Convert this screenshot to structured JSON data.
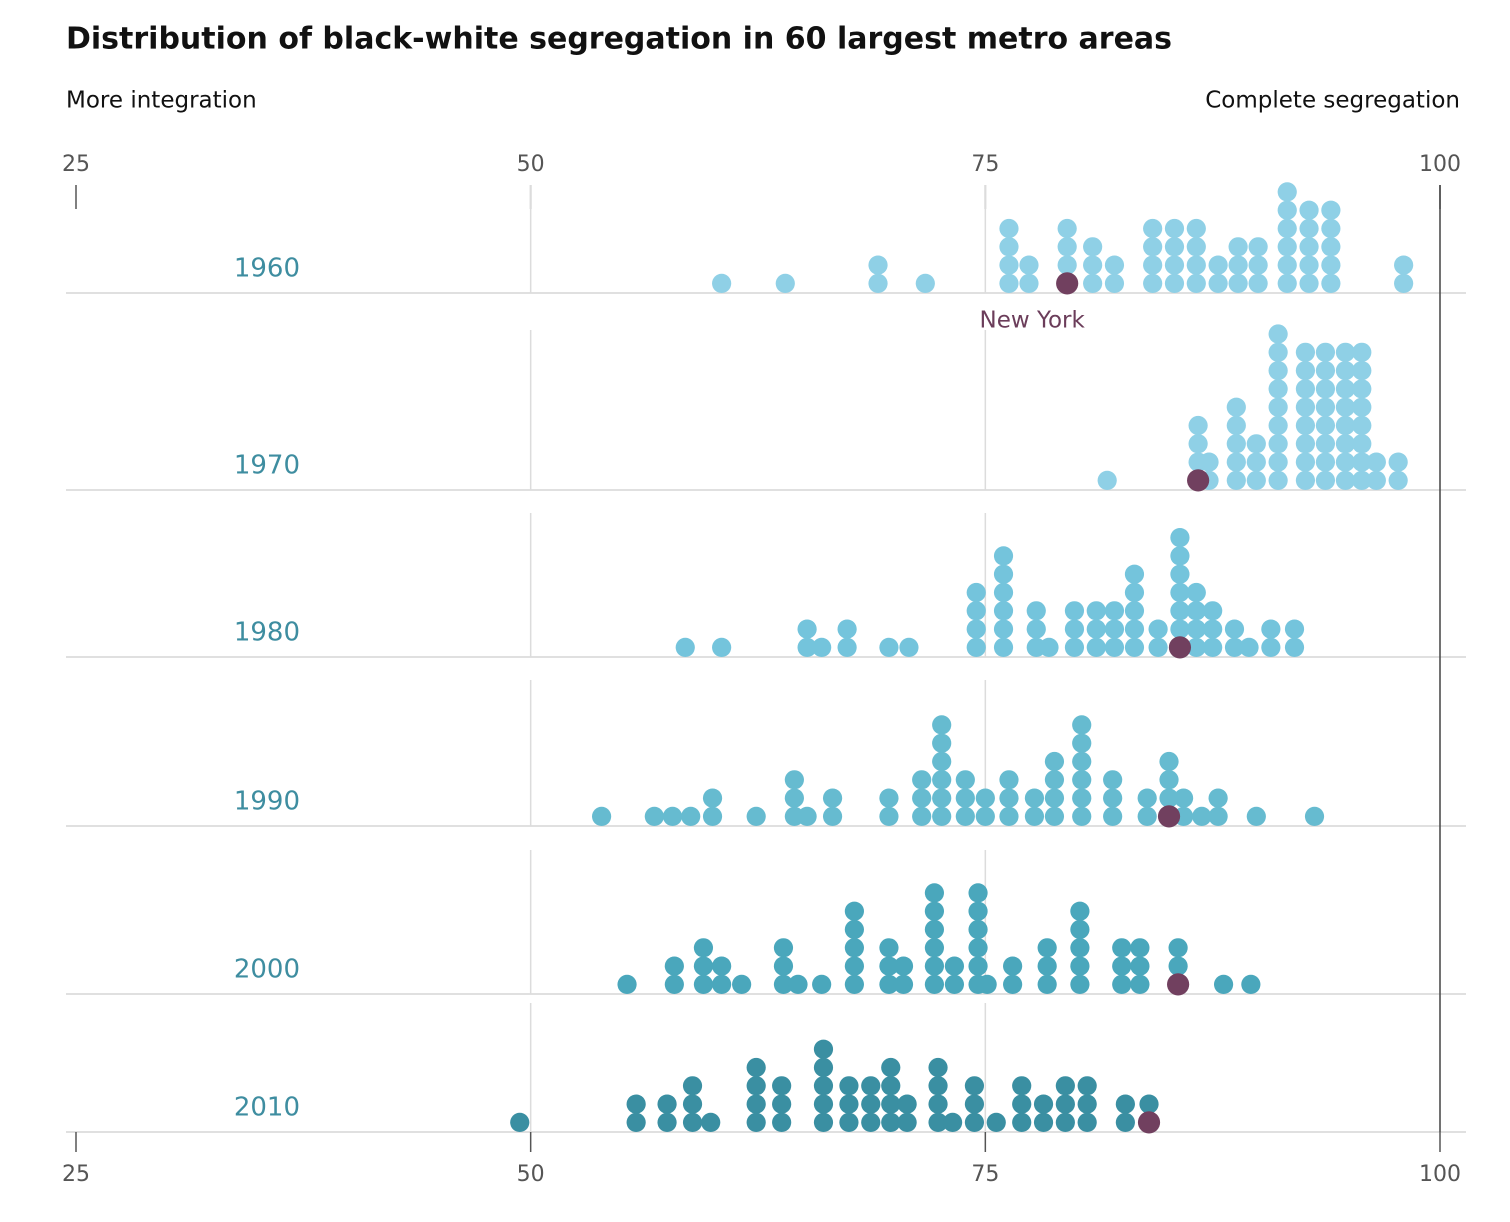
{
  "chart_data": {
    "type": "dot-stack",
    "title": "Distribution of black-white segregation in 60 largest metro areas",
    "left_label": "More integration",
    "right_label": "Complete segregation",
    "highlight_label": "New York",
    "highlight_color": "#71405f",
    "xlim": [
      25,
      100
    ],
    "xticks": [
      25,
      50,
      75,
      100
    ],
    "grid": true,
    "series": [
      {
        "name": "1960",
        "color": "#8fd0e6",
        "new_york": 79.5,
        "values": [
          60.5,
          64.0,
          69.1,
          69.1,
          71.7,
          76.3,
          76.3,
          76.3,
          76.3,
          77.4,
          77.4,
          79.5,
          79.5,
          79.5,
          80.9,
          80.9,
          80.9,
          82.1,
          82.1,
          84.2,
          84.2,
          84.2,
          84.2,
          85.4,
          85.4,
          85.4,
          85.4,
          86.6,
          86.6,
          86.6,
          86.6,
          87.8,
          87.8,
          88.9,
          88.9,
          88.9,
          90.0,
          90.0,
          90.0,
          91.6,
          91.6,
          91.6,
          91.6,
          91.6,
          91.6,
          92.8,
          92.8,
          92.8,
          92.8,
          92.8,
          94.0,
          94.0,
          94.0,
          94.0,
          94.0,
          98.0,
          98.0
        ]
      },
      {
        "name": "1970",
        "color": "#8fd0e6",
        "new_york": 86.7,
        "values": [
          81.7,
          86.7,
          86.7,
          86.7,
          87.3,
          87.3,
          88.8,
          88.8,
          88.8,
          88.8,
          88.8,
          89.9,
          89.9,
          89.9,
          91.1,
          91.1,
          91.1,
          91.1,
          91.1,
          91.1,
          91.1,
          91.1,
          91.1,
          92.6,
          92.6,
          92.6,
          92.6,
          92.6,
          92.6,
          92.6,
          92.6,
          93.7,
          93.7,
          93.7,
          93.7,
          93.7,
          93.7,
          93.7,
          93.7,
          94.8,
          94.8,
          94.8,
          94.8,
          94.8,
          94.8,
          94.8,
          94.8,
          95.7,
          95.7,
          95.7,
          95.7,
          95.7,
          95.7,
          95.7,
          95.7,
          96.5,
          96.5,
          97.7,
          97.7
        ]
      },
      {
        "name": "1980",
        "color": "#74c4dc",
        "new_york": 85.7,
        "values": [
          58.5,
          60.5,
          65.2,
          65.2,
          66.0,
          67.4,
          67.4,
          69.7,
          70.8,
          74.5,
          74.5,
          74.5,
          74.5,
          76.0,
          76.0,
          76.0,
          76.0,
          76.0,
          76.0,
          77.8,
          77.8,
          77.8,
          78.5,
          79.9,
          79.9,
          79.9,
          81.1,
          81.1,
          81.1,
          82.1,
          82.1,
          82.1,
          83.2,
          83.2,
          83.2,
          83.2,
          83.2,
          84.5,
          84.5,
          85.7,
          85.7,
          85.7,
          85.7,
          85.7,
          85.7,
          86.6,
          86.6,
          86.6,
          86.6,
          87.5,
          87.5,
          87.5,
          88.7,
          88.7,
          89.5,
          90.7,
          90.7,
          92.0,
          92.0
        ]
      },
      {
        "name": "1990",
        "color": "#66bbd0",
        "new_york": 85.1,
        "values": [
          53.9,
          56.8,
          57.8,
          58.8,
          60.0,
          60.0,
          62.4,
          64.5,
          64.5,
          64.5,
          65.2,
          66.6,
          66.6,
          69.7,
          69.7,
          71.5,
          71.5,
          71.5,
          72.6,
          72.6,
          72.6,
          72.6,
          72.6,
          72.6,
          73.9,
          73.9,
          73.9,
          75.0,
          75.0,
          76.3,
          76.3,
          76.3,
          77.7,
          77.7,
          78.8,
          78.8,
          78.8,
          78.8,
          80.3,
          80.3,
          80.3,
          80.3,
          80.3,
          80.3,
          82.0,
          82.0,
          82.0,
          83.9,
          83.9,
          85.1,
          85.1,
          85.1,
          85.9,
          85.9,
          86.9,
          87.8,
          87.8,
          89.9,
          93.1
        ]
      },
      {
        "name": "2000",
        "color": "#4aa7bc",
        "new_york": 85.6,
        "values": [
          55.3,
          57.9,
          57.9,
          59.5,
          59.5,
          59.5,
          60.5,
          60.5,
          61.6,
          63.9,
          63.9,
          63.9,
          64.7,
          66.0,
          67.8,
          67.8,
          67.8,
          67.8,
          67.8,
          69.7,
          69.7,
          69.7,
          70.5,
          70.5,
          72.2,
          72.2,
          72.2,
          72.2,
          72.2,
          72.2,
          73.3,
          73.3,
          74.6,
          74.6,
          74.6,
          74.6,
          74.6,
          74.6,
          75.1,
          76.5,
          76.5,
          78.4,
          78.4,
          78.4,
          80.2,
          80.2,
          80.2,
          80.2,
          80.2,
          82.5,
          82.5,
          82.5,
          83.5,
          83.5,
          83.5,
          85.6,
          85.6,
          88.1,
          89.6
        ]
      },
      {
        "name": "2010",
        "color": "#3a8fa2",
        "new_york": 84.0,
        "values": [
          49.4,
          55.8,
          55.8,
          57.5,
          57.5,
          58.9,
          58.9,
          58.9,
          59.9,
          62.4,
          62.4,
          62.4,
          62.4,
          63.8,
          63.8,
          63.8,
          66.1,
          66.1,
          66.1,
          66.1,
          66.1,
          67.5,
          67.5,
          67.5,
          68.7,
          68.7,
          68.7,
          69.8,
          69.8,
          69.8,
          69.8,
          70.7,
          70.7,
          72.4,
          72.4,
          72.4,
          72.4,
          73.2,
          74.4,
          74.4,
          74.4,
          75.6,
          77.0,
          77.0,
          77.0,
          78.2,
          78.2,
          79.4,
          79.4,
          79.4,
          80.6,
          80.6,
          80.6,
          82.7,
          82.7,
          84.0
        ]
      }
    ]
  }
}
